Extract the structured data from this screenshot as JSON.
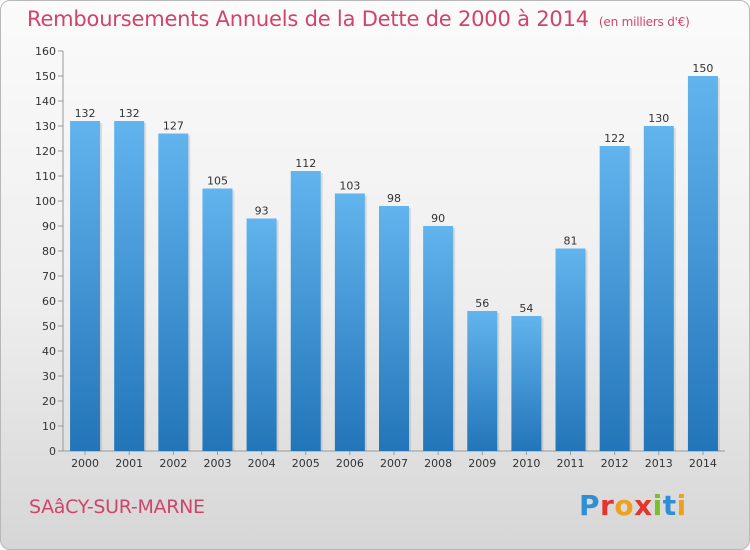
{
  "chart_data": {
    "type": "bar",
    "title": "Remboursements Annuels de la Dette de 2000 à 2014",
    "unit_note": "(en milliers d'€)",
    "categories": [
      "2000",
      "2001",
      "2002",
      "2003",
      "2004",
      "2005",
      "2006",
      "2007",
      "2008",
      "2009",
      "2010",
      "2011",
      "2012",
      "2013",
      "2014"
    ],
    "values": [
      132,
      132,
      127,
      105,
      93,
      112,
      103,
      98,
      90,
      56,
      54,
      81,
      122,
      130,
      150
    ],
    "ylim": [
      0,
      160
    ],
    "yticks": [
      0,
      10,
      20,
      30,
      40,
      50,
      60,
      70,
      80,
      90,
      100,
      110,
      120,
      130,
      140,
      150,
      160
    ],
    "xlabel": "",
    "ylabel": "",
    "grid": false,
    "colors": {
      "bar_light": "#62b4ee",
      "bar_dark": "#2275b8",
      "title": "#d1446a"
    }
  },
  "footer": {
    "commune": "SAâCY-SUR-MARNE",
    "logo_letters": [
      "P",
      "r",
      "o",
      "x",
      "i",
      "t",
      "i"
    ]
  }
}
